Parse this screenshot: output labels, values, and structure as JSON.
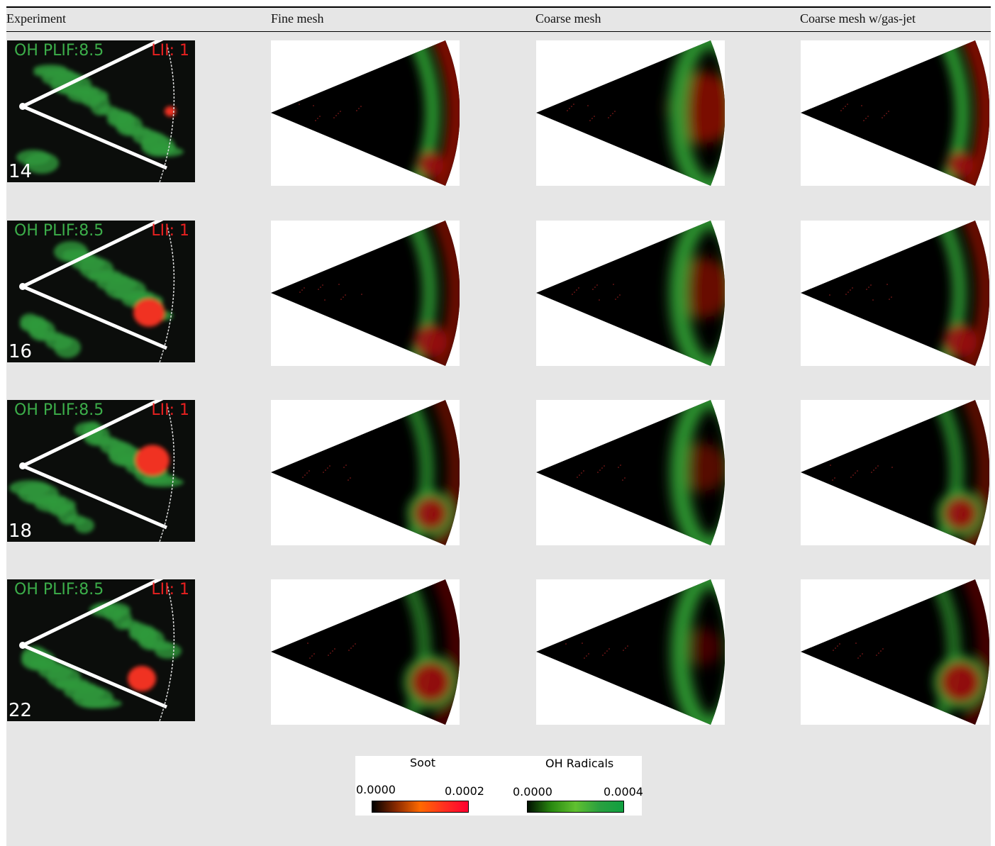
{
  "table": {
    "columns": [
      "Experiment",
      "Fine mesh",
      "Coarse mesh",
      "Coarse mesh w/gas-jet"
    ],
    "rows": [
      {
        "oh_label": "OH PLIF:8.5",
        "lii_label": "LII: 1",
        "time": "14"
      },
      {
        "oh_label": "OH PLIF:8.5",
        "lii_label": "LII: 1",
        "time": "16"
      },
      {
        "oh_label": "OH PLIF:8.5",
        "lii_label": "LII: 1",
        "time": "18"
      },
      {
        "oh_label": "OH PLIF:8.5",
        "lii_label": "LII: 1",
        "time": "22"
      }
    ]
  },
  "legend": {
    "soot": {
      "title": "Soot",
      "min": "0.0000",
      "max": "0.0002"
    },
    "oh": {
      "title": "OH Radicals",
      "min": "0.0000",
      "max": "0.0004"
    }
  }
}
